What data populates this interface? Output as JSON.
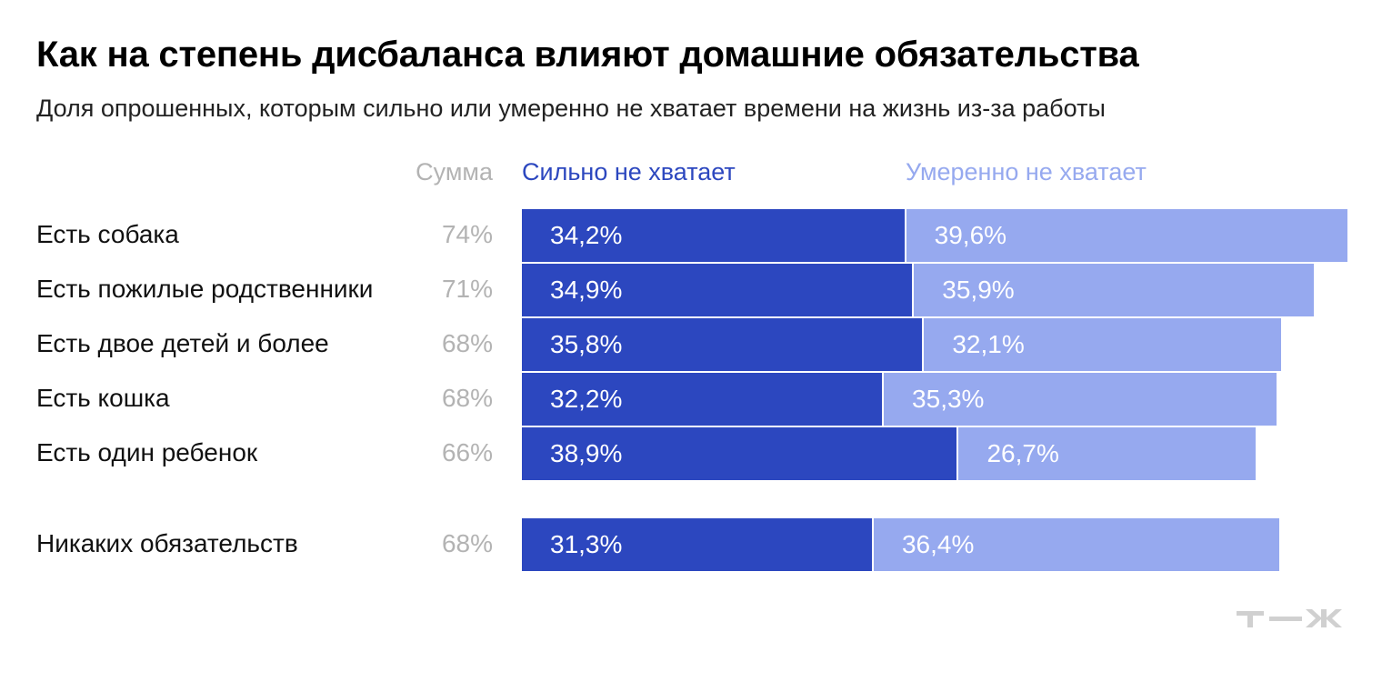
{
  "title": "Как на степень дисбаланса влияют домашние обязательства",
  "subtitle": "Доля опрошенных, которым сильно или умеренно не хватает времени на жизнь из-за работы",
  "headers": {
    "sum": "Сумма",
    "strong": "Сильно не хватает",
    "moderate": "Умеренно не хватает"
  },
  "colors": {
    "strong": "#2c47bf",
    "moderate": "#96a9ef",
    "sum_text": "#b3b3b3"
  },
  "logo": "т—ж",
  "chart_data": {
    "type": "bar",
    "orientation": "horizontal",
    "stacked": true,
    "categories": [
      "Есть собака",
      "Есть пожилые родственники",
      "Есть двое детей и более",
      "Есть кошка",
      "Есть один ребенок",
      "Никаких обязательств"
    ],
    "totals": [
      "74%",
      "71%",
      "68%",
      "68%",
      "66%",
      "68%"
    ],
    "series": [
      {
        "name": "Сильно не хватает",
        "values": [
          34.2,
          34.9,
          35.8,
          32.2,
          38.9,
          31.3
        ],
        "labels": [
          "34,2%",
          "34,9%",
          "35,8%",
          "32,2%",
          "38,9%",
          "31,3%"
        ]
      },
      {
        "name": "Умеренно не хватает",
        "values": [
          39.6,
          35.9,
          32.1,
          35.3,
          26.7,
          36.4
        ],
        "labels": [
          "39,6%",
          "35,9%",
          "32,1%",
          "35,3%",
          "26,7%",
          "36,4%"
        ]
      }
    ],
    "grid": false,
    "legend": "top"
  }
}
